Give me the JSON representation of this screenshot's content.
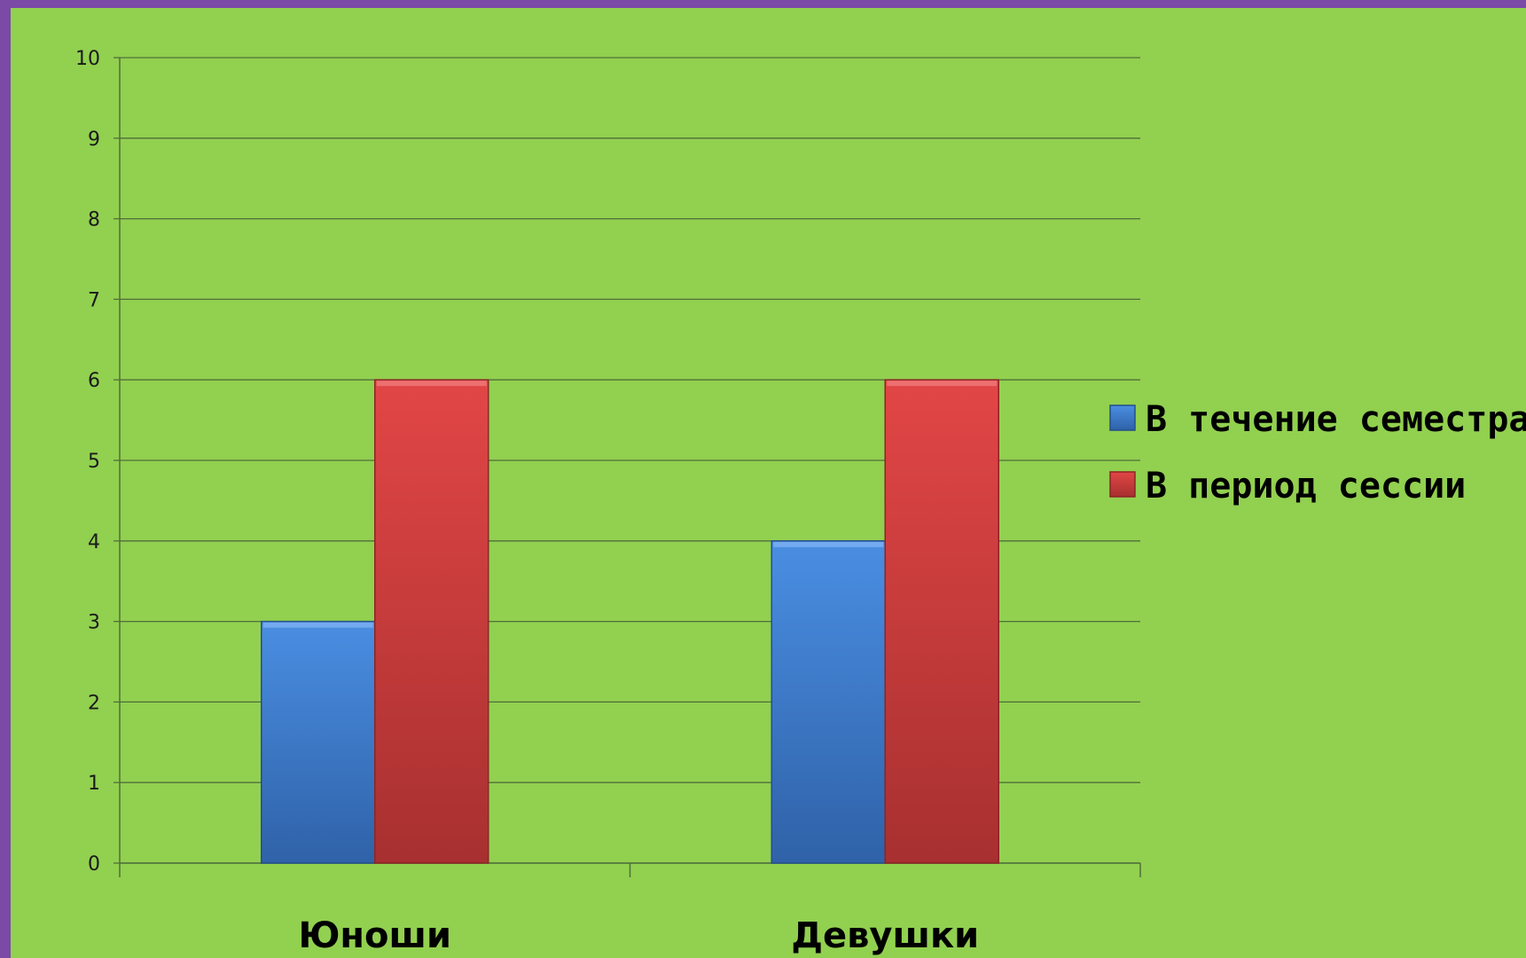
{
  "chart_data": {
    "type": "bar",
    "categories": [
      "Юноши",
      "Девушки"
    ],
    "series": [
      {
        "name": "В течение семестра",
        "values": [
          3,
          4
        ],
        "color": "#3c7ad0"
      },
      {
        "name": "В период сессии",
        "values": [
          6,
          6
        ],
        "color": "#d23c3c"
      }
    ],
    "ylim": [
      0,
      10
    ],
    "yticks": [
      0,
      1,
      2,
      3,
      4,
      5,
      6,
      7,
      8,
      9,
      10
    ],
    "grid": true,
    "legend_position": "right",
    "background_color": "#92d050",
    "frame_color": "#7a4aa6"
  }
}
